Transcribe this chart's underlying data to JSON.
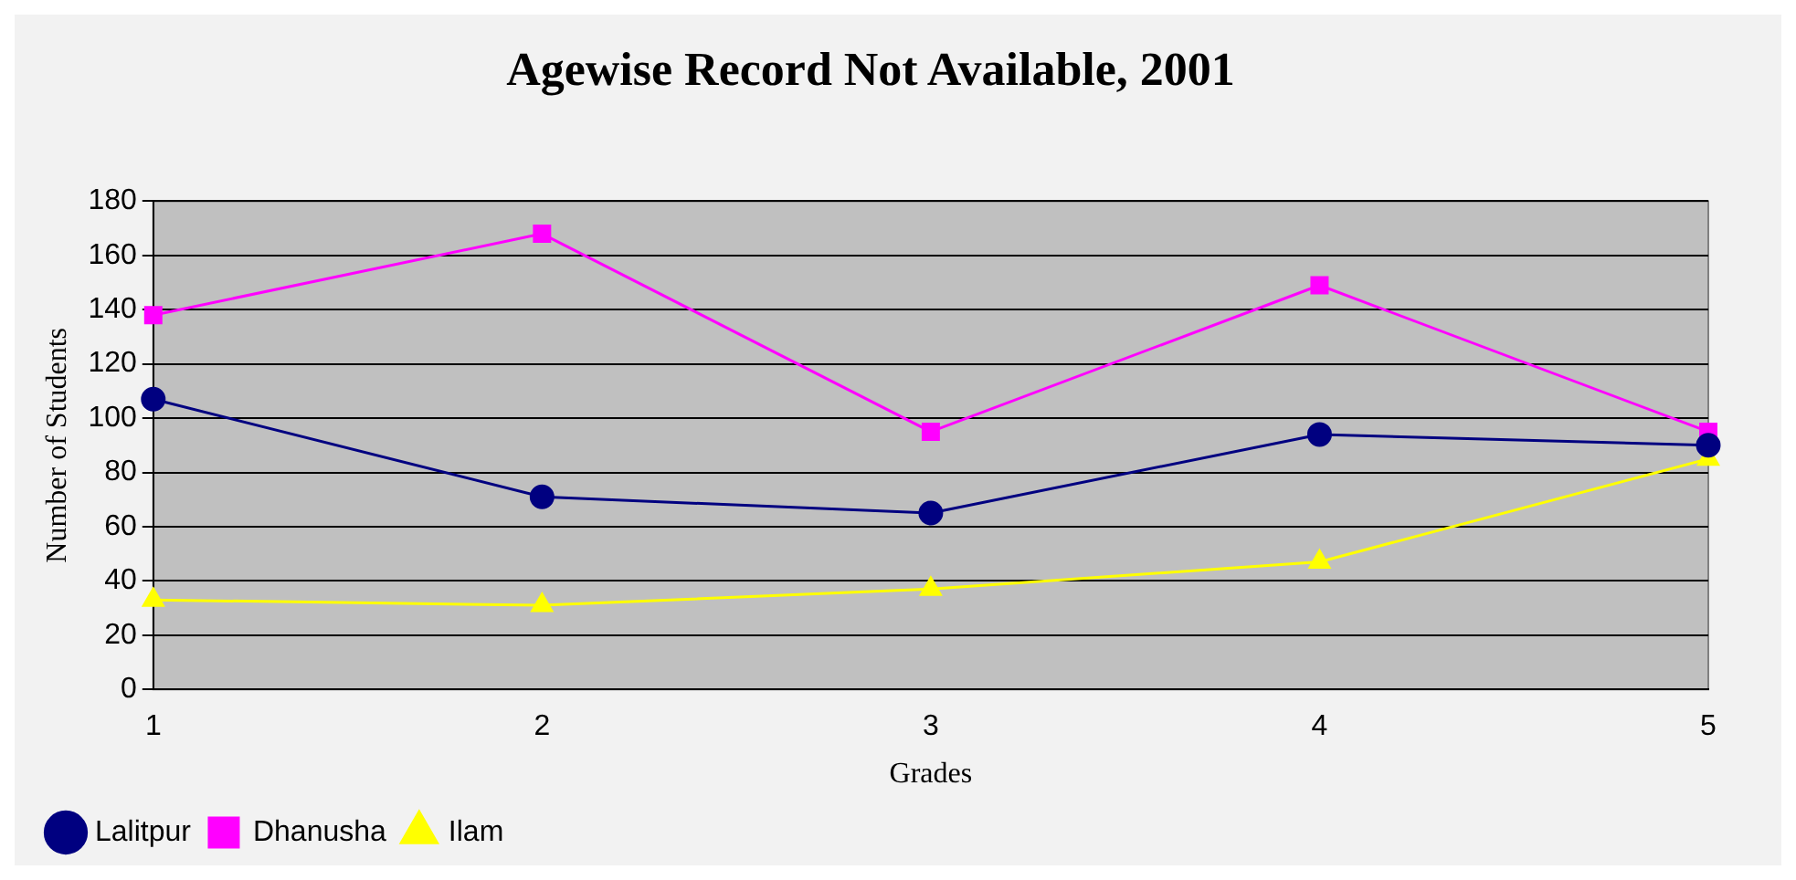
{
  "chart_data": {
    "type": "line",
    "title": "Agewise Record Not Available, 2001",
    "xlabel": "Grades",
    "ylabel": "Number of Students",
    "categories": [
      "1",
      "2",
      "3",
      "4",
      "5"
    ],
    "series": [
      {
        "name": "Lalitpur",
        "color": "#000080",
        "marker": "circle",
        "values": [
          107,
          71,
          65,
          94,
          90
        ]
      },
      {
        "name": "Dhanusha",
        "color": "#ff00ff",
        "marker": "square",
        "values": [
          138,
          168,
          95,
          149,
          95
        ]
      },
      {
        "name": "Ilam",
        "color": "#ffff00",
        "marker": "triangle",
        "values": [
          33,
          31,
          37,
          47,
          85
        ]
      }
    ],
    "ylim": [
      0,
      180
    ],
    "yticks": [
      0,
      20,
      40,
      60,
      80,
      100,
      120,
      140,
      160,
      180
    ],
    "grid": "y",
    "legend": "bottom left"
  }
}
